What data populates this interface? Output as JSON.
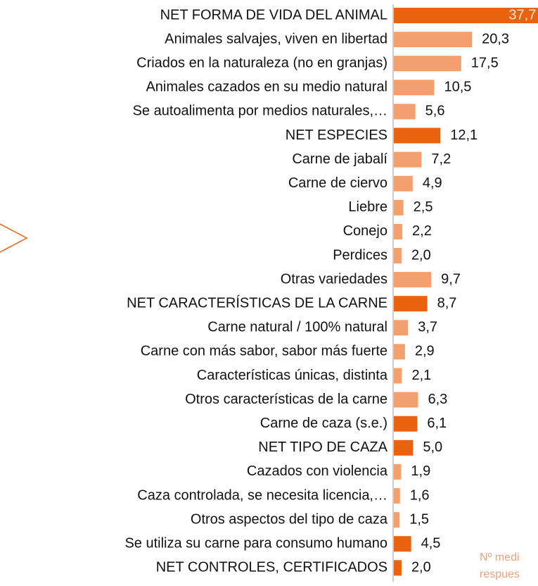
{
  "chart_data": {
    "type": "bar",
    "orientation": "horizontal",
    "categories": [
      "NET FORMA DE VIDA DEL ANIMAL",
      "Animales salvajes, viven en libertad",
      "Criados en la naturaleza (no en granjas)",
      "Animales cazados en su medio natural",
      "Se autoalimenta por medios naturales,…",
      "NET ESPECIES",
      "Carne de jabalí",
      "Carne de ciervo",
      "Liebre",
      "Conejo",
      "Perdices",
      "Otras variedades",
      "NET CARACTERÍSTICAS DE LA CARNE",
      "Carne natural / 100% natural",
      "Carne con más sabor,  sabor más fuerte",
      "Características únicas, distinta",
      "Otros características de la carne",
      "Carne de caza (s.e.)",
      "NET TIPO DE CAZA",
      "Cazados con violencia",
      "Caza controlada, se necesita licencia,…",
      "Otros aspectos del tipo de caza",
      "Se utiliza su carne para consumo humano",
      "NET CONTROLES, CERTIFICADOS"
    ],
    "values": [
      37.7,
      20.3,
      17.5,
      10.5,
      5.6,
      12.1,
      7.2,
      4.9,
      2.5,
      2.2,
      2.0,
      9.7,
      8.7,
      3.7,
      2.9,
      2.1,
      6.3,
      6.1,
      5.0,
      1.9,
      1.6,
      1.5,
      4.5,
      2.0
    ],
    "value_labels": [
      "37,7",
      "20,3",
      "17,5",
      "10,5",
      "5,6",
      "12,1",
      "7,2",
      "4,9",
      "2,5",
      "2,2",
      "2,0",
      "9,7",
      "8,7",
      "3,7",
      "2,9",
      "2,1",
      "6,3",
      "6,1",
      "5,0",
      "1,9",
      "1,6",
      "1,5",
      "4,5",
      "2,0"
    ],
    "colors": [
      "#e8620f",
      "#f4a06e",
      "#f4a06e",
      "#f4a06e",
      "#f4a06e",
      "#e8620f",
      "#f4a06e",
      "#f4a06e",
      "#f4a06e",
      "#f4a06e",
      "#f4a06e",
      "#f4a06e",
      "#e8620f",
      "#f4a06e",
      "#f4a06e",
      "#f4a06e",
      "#f4a06e",
      "#e8620f",
      "#e8620f",
      "#f4a06e",
      "#f4a06e",
      "#f4a06e",
      "#e8620f",
      "#e8620f"
    ],
    "xlim": [
      0,
      38
    ],
    "annotations": [
      "Nº medi",
      "respues"
    ]
  }
}
